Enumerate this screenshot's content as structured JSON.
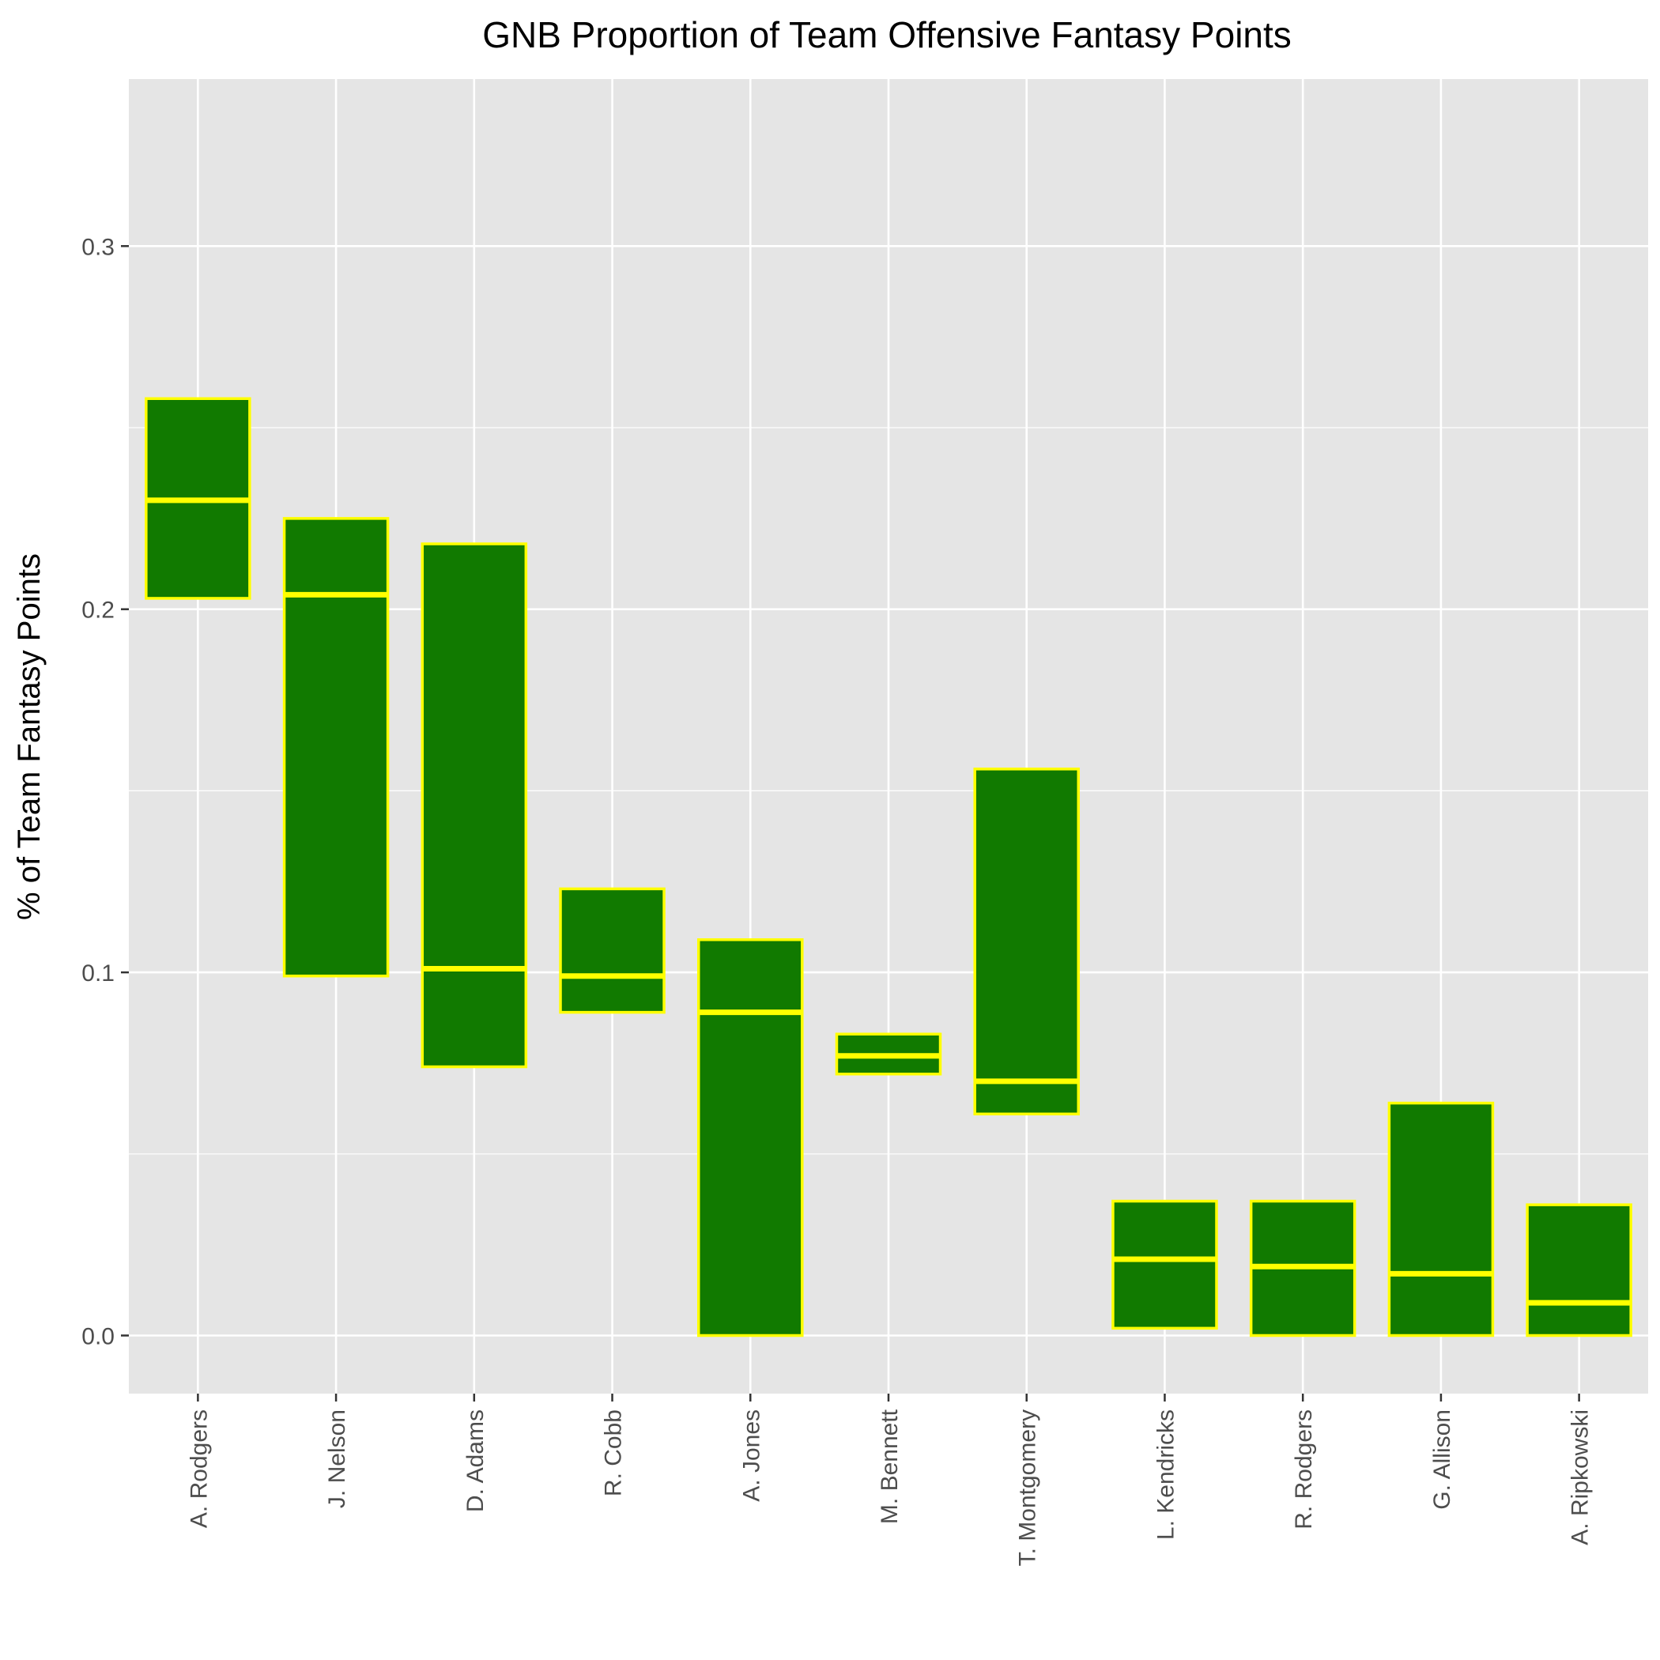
{
  "chart_data": {
    "type": "boxplot",
    "title": "GNB Proportion of Team Offensive Fantasy Points",
    "xlabel": "",
    "ylabel": "% of Team Fantasy Points",
    "ylim": [
      -0.016,
      0.346
    ],
    "yticks": [
      "0.0",
      "0.1",
      "0.2",
      "0.3"
    ],
    "grid": true,
    "colors": {
      "panel": "#e5e5e5",
      "grid": "#ffffff",
      "box_fill": "#117a00",
      "box_line": "#ffff00",
      "tick_text": "#4d4d4d"
    },
    "categories": [
      "A. Rodgers",
      "J. Nelson",
      "D. Adams",
      "R. Cobb",
      "A. Jones",
      "M. Bennett",
      "T. Montgomery",
      "L. Kendricks",
      "R. Rodgers",
      "G. Allison",
      "A. Ripkowski"
    ],
    "series": [
      {
        "q1": [
          0.203,
          0.099,
          0.074,
          0.089,
          0.0,
          0.072,
          0.061,
          0.002,
          0.0,
          0.0,
          0.0
        ],
        "median": [
          0.23,
          0.204,
          0.101,
          0.099,
          0.089,
          0.077,
          0.07,
          0.021,
          0.019,
          0.017,
          0.009
        ],
        "q3": [
          0.258,
          0.225,
          0.218,
          0.123,
          0.109,
          0.083,
          0.156,
          0.037,
          0.037,
          0.064,
          0.036
        ]
      }
    ]
  }
}
